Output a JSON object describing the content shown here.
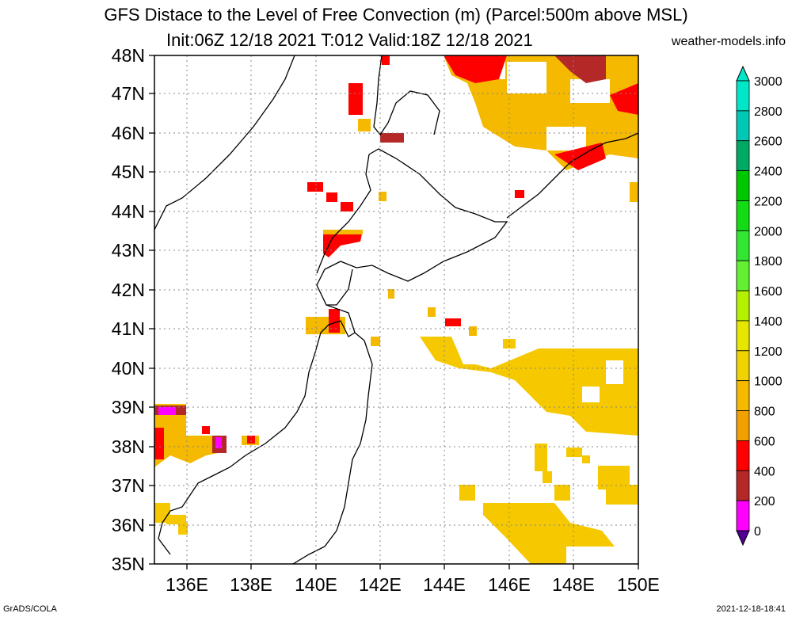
{
  "title_line1": "GFS Distace to the Level of Free Convection (m) (Parcel:500m above MSL)",
  "title_line2": "Init:06Z 12/18 2021 T:012 Valid:18Z 12/18 2021",
  "site": "weather-models.info",
  "footer_left": "GrADS/COLA",
  "footer_right": "2021-12-18-18:41",
  "map": {
    "lat_labels": [
      "48N",
      "47N",
      "46N",
      "45N",
      "44N",
      "43N",
      "42N",
      "41N",
      "40N",
      "39N",
      "38N",
      "37N",
      "36N",
      "35N"
    ],
    "lon_labels": [
      "136E",
      "138E",
      "140E",
      "142E",
      "144E",
      "146E",
      "148E",
      "150E"
    ]
  },
  "colorbar": {
    "labels": [
      "3000",
      "2800",
      "2600",
      "2400",
      "2200",
      "2000",
      "1800",
      "1600",
      "1400",
      "1200",
      "1000",
      "800",
      "600",
      "400",
      "200",
      "0"
    ],
    "colors": [
      "#00e6c8",
      "#00c8b4",
      "#00aa64",
      "#00c800",
      "#14dc14",
      "#32e632",
      "#64f032",
      "#b4f000",
      "#e6e600",
      "#f0d200",
      "#f5b900",
      "#f0a000",
      "#ff0000",
      "#b42828",
      "#ff00ff",
      "#500096"
    ]
  }
}
